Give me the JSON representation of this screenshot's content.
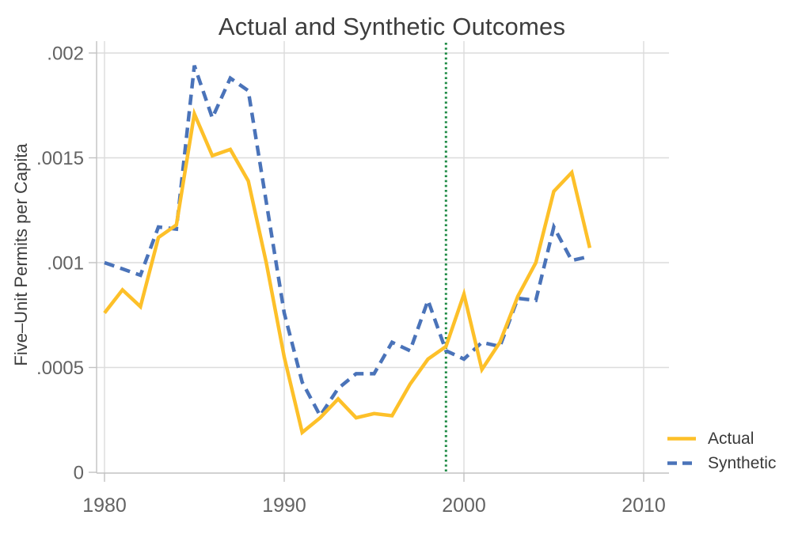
{
  "chart_data": {
    "type": "line",
    "title": "Actual and Synthetic Outcomes",
    "ylabel": "Five–Unit Permits per Capita",
    "xlabel": "",
    "x": [
      1980,
      1981,
      1982,
      1983,
      1984,
      1985,
      1986,
      1987,
      1988,
      1989,
      1990,
      1991,
      1992,
      1993,
      1994,
      1995,
      1996,
      1997,
      1998,
      1999,
      2000,
      2001,
      2002,
      2003,
      2004,
      2005,
      2006,
      2007
    ],
    "series": [
      {
        "name": "Actual",
        "color": "#fdc029",
        "line_style": "solid",
        "values": [
          0.00076,
          0.00087,
          0.00079,
          0.00112,
          0.00118,
          0.00171,
          0.00151,
          0.00154,
          0.00139,
          0.001,
          0.00055,
          0.00019,
          0.00026,
          0.00035,
          0.00026,
          0.00028,
          0.00027,
          0.00042,
          0.00054,
          0.0006,
          0.00085,
          0.00049,
          0.00062,
          0.00084,
          0.001,
          0.00134,
          0.00143,
          0.00107
        ]
      },
      {
        "name": "Synthetic",
        "color": "#4a73b9",
        "line_style": "dashed",
        "values": [
          0.001,
          0.00097,
          0.00094,
          0.00117,
          0.00116,
          0.00194,
          0.00169,
          0.00188,
          0.00182,
          0.00129,
          0.00076,
          0.00043,
          0.00027,
          0.0004,
          0.00047,
          0.00047,
          0.00062,
          0.00058,
          0.00082,
          0.00058,
          0.00054,
          0.00062,
          0.0006,
          0.00083,
          0.00082,
          0.00117,
          0.00101,
          0.00103
        ]
      }
    ],
    "treatment_line": {
      "year": 1999,
      "color": "#1f8b45",
      "line_style": "dotted"
    },
    "x_ticks": [
      1980,
      1990,
      2000,
      2010
    ],
    "y_ticks": [
      {
        "v": 0.0,
        "label": "0"
      },
      {
        "v": 0.0005,
        "label": ".0005"
      },
      {
        "v": 0.001,
        "label": ".001"
      },
      {
        "v": 0.0015,
        "label": ".0015"
      },
      {
        "v": 0.002,
        "label": ".002"
      }
    ],
    "ylim": [
      0,
      0.002
    ],
    "xlim": [
      1979.5,
      2011.4
    ],
    "grid": true,
    "legend": {
      "position": "outside-bottom-right",
      "items": [
        "Actual",
        "Synthetic"
      ]
    },
    "colors": {
      "grid": "#dcdcdc",
      "axis": "#c2c2c2",
      "tick_label": "#636363",
      "title": "#3d3d3d"
    }
  }
}
